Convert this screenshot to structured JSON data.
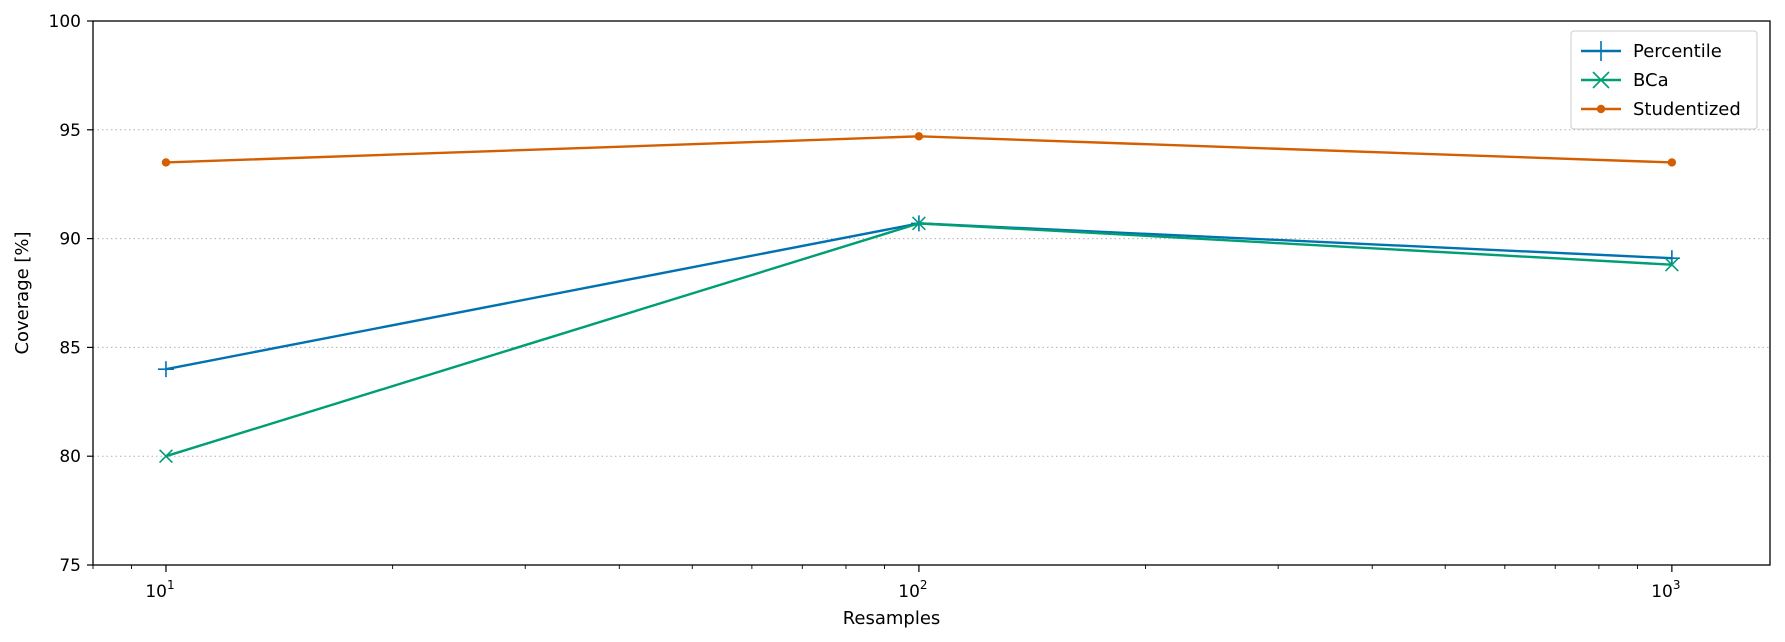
{
  "chart_data": {
    "type": "line",
    "x_scale": "log",
    "x": [
      10,
      100,
      1000
    ],
    "xlim": [
      8,
      1350
    ],
    "ylim": [
      75,
      100
    ],
    "yticks": [
      75,
      80,
      85,
      90,
      95,
      100
    ],
    "xticks": [
      {
        "value": 10,
        "base": "10",
        "exp": "1"
      },
      {
        "value": 100,
        "base": "10",
        "exp": "2"
      },
      {
        "value": 1000,
        "base": "10",
        "exp": "3"
      }
    ],
    "xlabel": "Resamples",
    "ylabel": "Coverage [%]",
    "grid": "horizontal-dotted",
    "legend_position": "top-right",
    "series": [
      {
        "name": "Percentile",
        "values": [
          84.0,
          90.7,
          89.1
        ],
        "color": "#0072B2",
        "marker": "plus"
      },
      {
        "name": "BCa",
        "values": [
          80.0,
          90.7,
          88.8
        ],
        "color": "#009E73",
        "marker": "x"
      },
      {
        "name": "Studentized",
        "values": [
          93.5,
          94.7,
          93.5
        ],
        "color": "#D55E00",
        "marker": "circle"
      }
    ]
  }
}
